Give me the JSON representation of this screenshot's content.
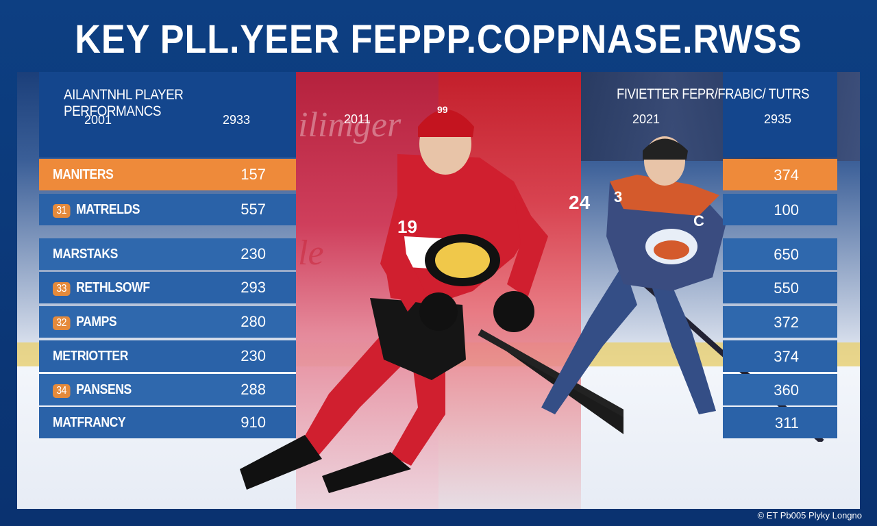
{
  "title": "KEY PLL.YEER FEPPP.COPPNASE.RWSS",
  "left_panel": {
    "title": "AILANTNHL PLAYER PERFORMANCS",
    "year_left": "2001",
    "year_right": "2933",
    "rows": [
      {
        "badge": "",
        "name": "MANITERS",
        "value": "157"
      },
      {
        "badge": "31",
        "name": "MATRELDS",
        "value": "557"
      },
      {
        "badge": "",
        "name": "MARSTAKS",
        "value": "230"
      },
      {
        "badge": "33",
        "name": "RETHLSOWF",
        "value": "293"
      },
      {
        "badge": "32",
        "name": "PAMPS",
        "value": "280"
      },
      {
        "badge": "",
        "name": "METRIOTTER",
        "value": "230"
      },
      {
        "badge": "34",
        "name": "PANSENS",
        "value": "288"
      },
      {
        "badge": "",
        "name": "MATFRANCY",
        "value": "910"
      }
    ]
  },
  "middle": {
    "year": "2011",
    "ghost_text": "ilimger",
    "ghost_text_2": "le"
  },
  "right_panel": {
    "title": "FIVIETTER FEPR/FRABIC/ TUTRS",
    "year_left": "2021",
    "year_right": "2935",
    "values": [
      "374",
      "100",
      "650",
      "550",
      "372",
      "374",
      "360",
      "311"
    ]
  },
  "players": {
    "main_number": "19",
    "main_helmet_number": "99",
    "main_shoulder_number": "24",
    "right_letter": "C",
    "right_number": "3"
  },
  "footer": "© ET Pb005 Plyky Longno",
  "colors": {
    "background": "#0b3a78",
    "header_blue": "#14468d",
    "row_blue": "#2a62a8",
    "highlight_orange": "#ee8a3a",
    "jersey_red": "#d01f2f"
  }
}
